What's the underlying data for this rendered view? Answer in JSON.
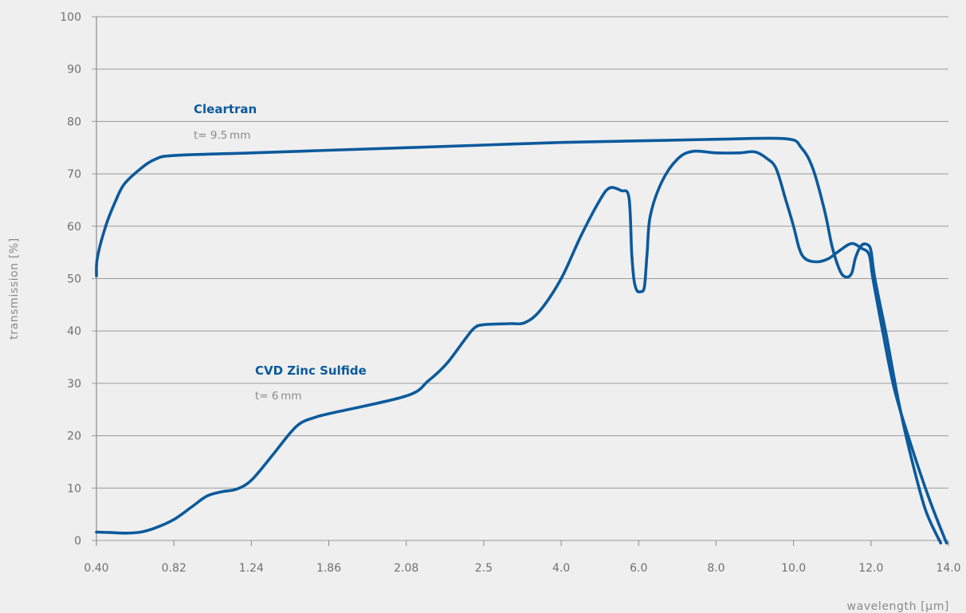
{
  "colors": {
    "background": "#efefef",
    "grid": "#9a9a9a",
    "axis": "#8a8a8a",
    "series": "#0b5a9c",
    "text": "#707070"
  },
  "chart_data": {
    "type": "line",
    "xlabel": "wavelength [µm]",
    "ylabel": "transmission [%]",
    "ylim": [
      0,
      100
    ],
    "y_ticks": [
      "0",
      "10",
      "20",
      "30",
      "40",
      "50",
      "60",
      "70",
      "80",
      "90",
      "100"
    ],
    "x_ticks": [
      "0.40",
      "0.82",
      "1.24",
      "1.86",
      "2.08",
      "2.5",
      "4.0",
      "6.0",
      "8.0",
      "10.0",
      "12.0",
      "14.0"
    ],
    "x_scale": "categorical-ticks",
    "grid": "horizontal",
    "series": [
      {
        "name": "Cleartran",
        "subtitle": "t= 9.5 mm",
        "points": [
          [
            0.4,
            50.5
          ],
          [
            0.405,
            54
          ],
          [
            0.45,
            60
          ],
          [
            0.5,
            64.5
          ],
          [
            0.55,
            68
          ],
          [
            0.64,
            71
          ],
          [
            0.72,
            72.8
          ],
          [
            0.82,
            73.5
          ],
          [
            1.24,
            74
          ],
          [
            1.86,
            74.5
          ],
          [
            2.08,
            75
          ],
          [
            2.5,
            75.5
          ],
          [
            4.0,
            76
          ],
          [
            6.0,
            76.3
          ],
          [
            8.0,
            76.6
          ],
          [
            9.8,
            76.7
          ],
          [
            10.2,
            75
          ],
          [
            10.5,
            71
          ],
          [
            10.8,
            63
          ],
          [
            11.0,
            56
          ],
          [
            11.2,
            51.5
          ],
          [
            11.35,
            50.3
          ],
          [
            11.5,
            51
          ],
          [
            11.6,
            54
          ],
          [
            11.75,
            56.3
          ],
          [
            11.9,
            56.5
          ],
          [
            12.0,
            55.3
          ],
          [
            12.1,
            50
          ],
          [
            12.4,
            39
          ],
          [
            12.7,
            27
          ],
          [
            13.0,
            17
          ],
          [
            13.4,
            6
          ],
          [
            13.8,
            -0.5
          ]
        ]
      },
      {
        "name": "CVD Zinc Sulfide",
        "subtitle": "t= 6 mm",
        "points": [
          [
            0.4,
            1.6
          ],
          [
            0.48,
            1.5
          ],
          [
            0.56,
            1.4
          ],
          [
            0.64,
            1.6
          ],
          [
            0.72,
            2.4
          ],
          [
            0.82,
            4
          ],
          [
            0.92,
            6.5
          ],
          [
            1.0,
            8.5
          ],
          [
            1.08,
            9.3
          ],
          [
            1.16,
            9.8
          ],
          [
            1.24,
            11.5
          ],
          [
            1.4,
            16
          ],
          [
            1.55,
            20.5
          ],
          [
            1.64,
            22.5
          ],
          [
            1.75,
            23.5
          ],
          [
            1.86,
            24.2
          ],
          [
            2.08,
            27.6
          ],
          [
            2.2,
            30.5
          ],
          [
            2.3,
            33.8
          ],
          [
            2.4,
            38.5
          ],
          [
            2.45,
            40.6
          ],
          [
            2.5,
            41.2
          ],
          [
            3.0,
            41.4
          ],
          [
            3.3,
            41.6
          ],
          [
            3.6,
            44
          ],
          [
            4.0,
            50
          ],
          [
            4.5,
            58
          ],
          [
            5.0,
            65
          ],
          [
            5.25,
            67.3
          ],
          [
            5.55,
            66.8
          ],
          [
            5.75,
            65.5
          ],
          [
            5.82,
            55
          ],
          [
            5.88,
            49.8
          ],
          [
            5.95,
            47.8
          ],
          [
            6.05,
            47.5
          ],
          [
            6.15,
            48.5
          ],
          [
            6.22,
            55
          ],
          [
            6.3,
            62
          ],
          [
            6.6,
            68.5
          ],
          [
            7.0,
            72.8
          ],
          [
            7.4,
            74.3
          ],
          [
            8.0,
            74
          ],
          [
            8.6,
            74
          ],
          [
            9.0,
            74.2
          ],
          [
            9.3,
            73
          ],
          [
            9.55,
            71
          ],
          [
            9.8,
            65
          ],
          [
            10.0,
            60
          ],
          [
            10.15,
            55.7
          ],
          [
            10.3,
            53.8
          ],
          [
            10.6,
            53.2
          ],
          [
            10.9,
            53.8
          ],
          [
            11.2,
            55.4
          ],
          [
            11.5,
            56.7
          ],
          [
            11.75,
            55.8
          ],
          [
            11.95,
            54.6
          ],
          [
            12.05,
            50
          ],
          [
            12.3,
            40
          ],
          [
            12.6,
            29
          ],
          [
            13.0,
            19
          ],
          [
            13.5,
            8
          ],
          [
            13.95,
            -0.5
          ]
        ]
      }
    ]
  }
}
